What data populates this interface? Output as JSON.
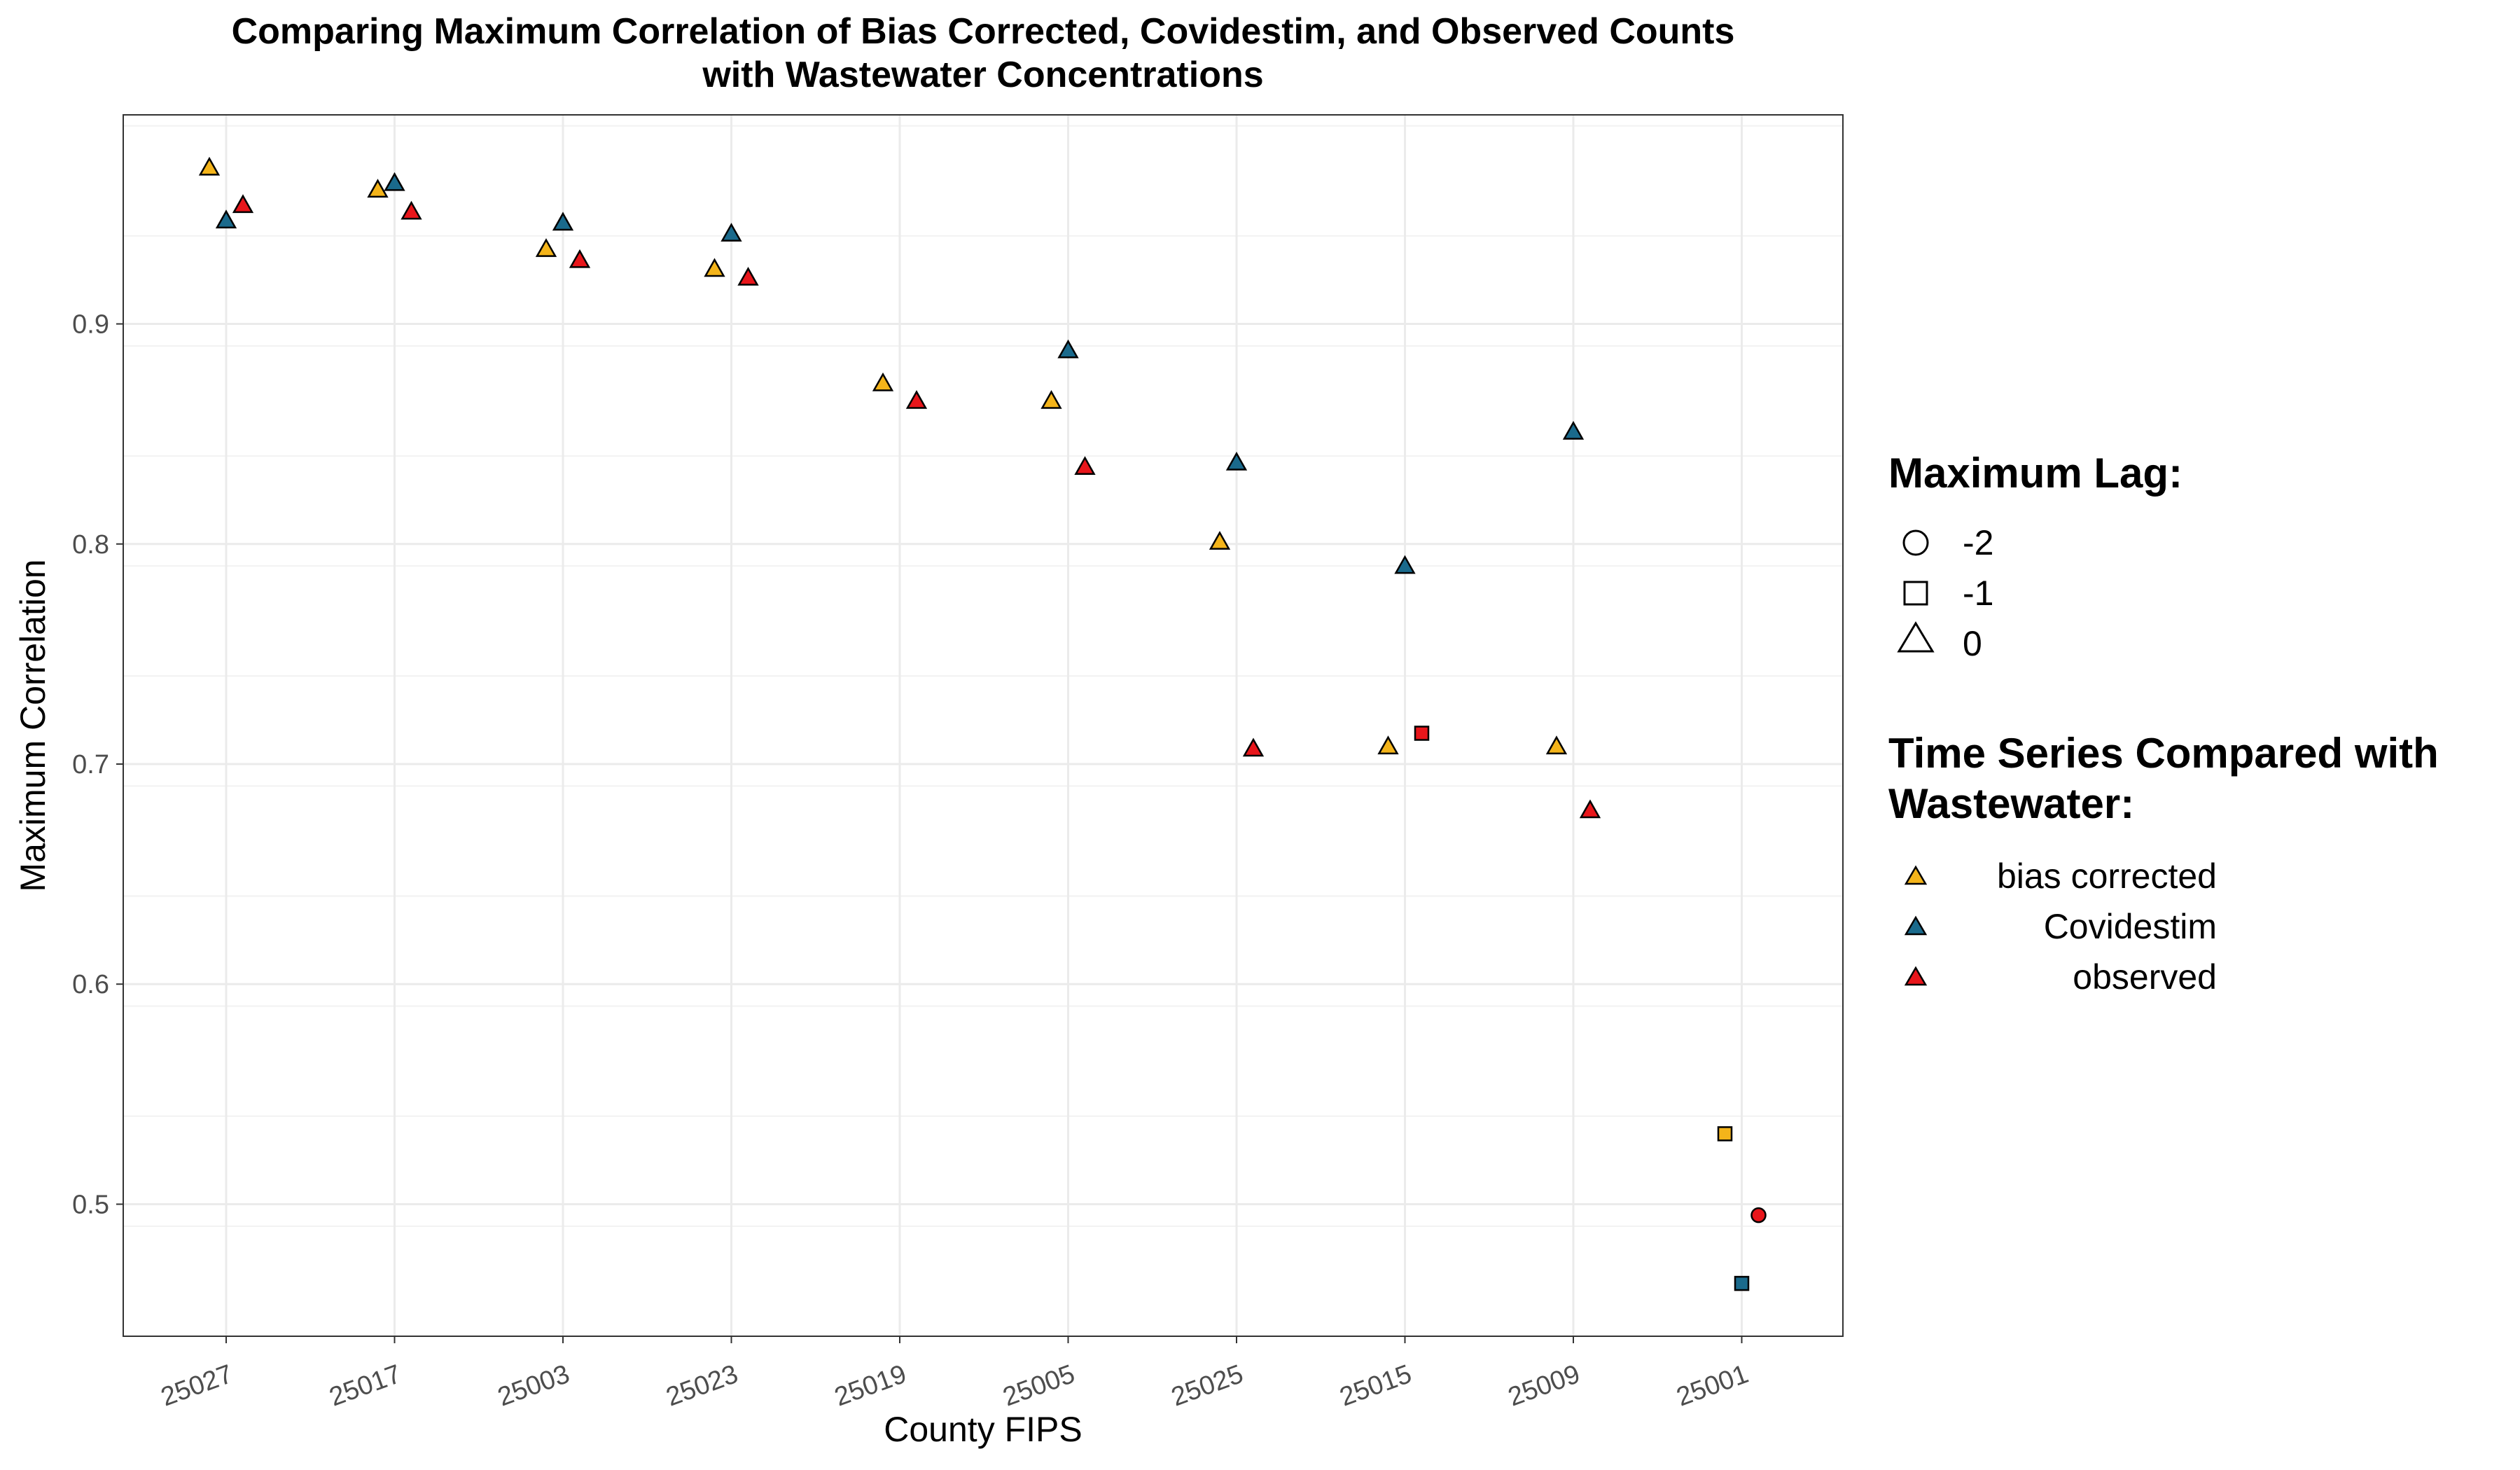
{
  "chart_data": {
    "type": "scatter",
    "title": [
      "Comparing Maximum Correlation of Bias Corrected, Covidestim, and Observed Counts",
      "with Wastewater Concentrations"
    ],
    "xlabel": "County FIPS",
    "ylabel": "Maximum Correlation",
    "categories": [
      "25027",
      "25017",
      "25003",
      "25023",
      "25019",
      "25005",
      "25025",
      "25015",
      "25009",
      "25001"
    ],
    "ylim": [
      0.44,
      0.995
    ],
    "yticks": [
      0.5,
      0.6,
      0.7,
      0.8,
      0.9
    ],
    "ytick_labels": [
      "0.5",
      "0.6",
      "0.7",
      "0.8",
      "0.9"
    ],
    "grid": true,
    "legend_position": "right",
    "shape_legend": {
      "title": "Maximum Lag:",
      "entries": [
        {
          "label": "-2",
          "shape": "circle"
        },
        {
          "label": "-1",
          "shape": "square"
        },
        {
          "label": "0",
          "shape": "triangle"
        }
      ]
    },
    "color_legend": {
      "title": [
        "Time Series Compared with",
        "Wastewater:"
      ],
      "entries": [
        {
          "label": "bias corrected",
          "color": "#f4b41a"
        },
        {
          "label": "Covidestim",
          "color": "#1a6a8c"
        },
        {
          "label": "observed",
          "color": "#e8161b"
        }
      ]
    },
    "series": [
      {
        "name": "bias corrected",
        "color": "#f4b41a",
        "points": [
          {
            "x": "25027",
            "y": 0.971,
            "lag": 0
          },
          {
            "x": "25017",
            "y": 0.961,
            "lag": 0
          },
          {
            "x": "25003",
            "y": 0.934,
            "lag": 0
          },
          {
            "x": "25023",
            "y": 0.925,
            "lag": 0
          },
          {
            "x": "25019",
            "y": 0.873,
            "lag": 0
          },
          {
            "x": "25005",
            "y": 0.865,
            "lag": 0
          },
          {
            "x": "25025",
            "y": 0.801,
            "lag": 0
          },
          {
            "x": "25015",
            "y": 0.708,
            "lag": 0
          },
          {
            "x": "25009",
            "y": 0.708,
            "lag": 0
          },
          {
            "x": "25001",
            "y": 0.532,
            "lag": -1
          }
        ]
      },
      {
        "name": "Covidestim",
        "color": "#1a6a8c",
        "points": [
          {
            "x": "25027",
            "y": 0.947,
            "lag": 0
          },
          {
            "x": "25017",
            "y": 0.964,
            "lag": 0
          },
          {
            "x": "25003",
            "y": 0.946,
            "lag": 0
          },
          {
            "x": "25023",
            "y": 0.941,
            "lag": 0
          },
          {
            "x": "25005",
            "y": 0.888,
            "lag": 0
          },
          {
            "x": "25025",
            "y": 0.837,
            "lag": 0
          },
          {
            "x": "25015",
            "y": 0.79,
            "lag": 0
          },
          {
            "x": "25009",
            "y": 0.851,
            "lag": 0
          },
          {
            "x": "25001",
            "y": 0.464,
            "lag": -1
          }
        ]
      },
      {
        "name": "observed",
        "color": "#e8161b",
        "points": [
          {
            "x": "25027",
            "y": 0.954,
            "lag": 0
          },
          {
            "x": "25017",
            "y": 0.951,
            "lag": 0
          },
          {
            "x": "25003",
            "y": 0.929,
            "lag": 0
          },
          {
            "x": "25023",
            "y": 0.921,
            "lag": 0
          },
          {
            "x": "25019",
            "y": 0.865,
            "lag": 0
          },
          {
            "x": "25005",
            "y": 0.835,
            "lag": 0
          },
          {
            "x": "25025",
            "y": 0.707,
            "lag": 0
          },
          {
            "x": "25015",
            "y": 0.714,
            "lag": -1
          },
          {
            "x": "25009",
            "y": 0.679,
            "lag": 0
          },
          {
            "x": "25001",
            "y": 0.495,
            "lag": -2
          }
        ]
      }
    ]
  }
}
